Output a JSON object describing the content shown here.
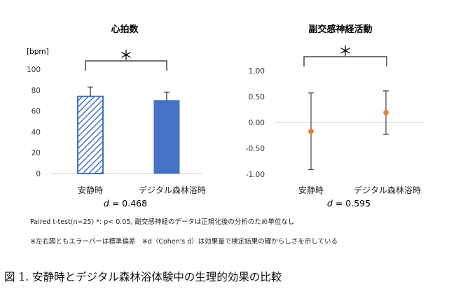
{
  "chart_data": [
    {
      "type": "bar",
      "title": "心拍数",
      "unit_label": "[bpm]",
      "categories": [
        "安静時",
        "デジタル森林浴時"
      ],
      "values": [
        74,
        70
      ],
      "errors": [
        9,
        8
      ],
      "ylim": [
        0,
        100
      ],
      "yticks": [
        "0",
        "20",
        "40",
        "60",
        "80",
        "100"
      ],
      "significance": "＊",
      "effect_size_d": "0.468",
      "colors": [
        "#4472c4",
        "#4472c4"
      ],
      "patterns": [
        "hatched",
        "solid"
      ]
    },
    {
      "type": "scatter",
      "title": "副交感神経活動",
      "categories": [
        "安静時",
        "デジタル森林浴時"
      ],
      "values": [
        -0.17,
        0.19
      ],
      "errors": [
        0.74,
        0.42
      ],
      "ylim": [
        -1.0,
        1.0
      ],
      "yticks": [
        "1.00",
        "0.50",
        "0.00",
        "-0.50",
        "-1.00"
      ],
      "significance": "＊",
      "effect_size_d": "0.595",
      "colors": [
        "#ed7d31"
      ]
    }
  ],
  "notes": {
    "note1": "Paired t-test(n=25) *: p< 0.05,  副交感神経のデータは正規化後の分析のため単位なし",
    "note2": "※左右図ともエラーバーは標準偏差　※d（Cohen's d）は効果量で検定結果の確からしさを示している"
  },
  "caption": "図 1. 安静時とデジタル森林浴体験中の生理的効果の比較",
  "d_prefix": "d",
  "d_equals": " = "
}
